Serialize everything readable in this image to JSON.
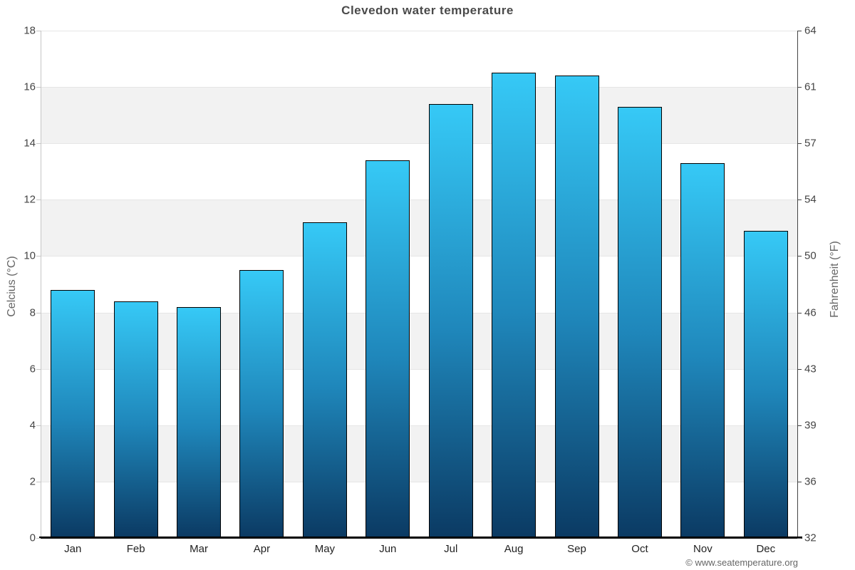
{
  "page": {
    "copyright": "© www.seatemperature.org"
  },
  "chart_data": {
    "type": "bar",
    "title": "Clevedon water temperature",
    "categories": [
      "Jan",
      "Feb",
      "Mar",
      "Apr",
      "May",
      "Jun",
      "Jul",
      "Aug",
      "Sep",
      "Oct",
      "Nov",
      "Dec"
    ],
    "values": [
      8.8,
      8.4,
      8.2,
      9.5,
      11.2,
      13.4,
      15.4,
      16.5,
      16.4,
      15.3,
      13.3,
      10.9
    ],
    "series_name": "Water temperature",
    "xlabel": "",
    "ylabel_left": "Celcius (°C)",
    "ylabel_right": "Fahrenheit (°F)",
    "ylim": [
      0,
      18
    ],
    "yticks_celsius": [
      18,
      16,
      14,
      12,
      10,
      8,
      6,
      4,
      2,
      0
    ],
    "yticks_fahrenheit": [
      64,
      61,
      57,
      54,
      50,
      46,
      43,
      39,
      36,
      32
    ],
    "legend": "none",
    "grid": "horizontal gridlines every 2°C with alternating shaded bands",
    "colors": {
      "bar_gradient_top": "#36c9f6",
      "bar_gradient_mid": "#1f87bb",
      "bar_gradient_bottom": "#0b3a63",
      "bar_border": "#000000",
      "band_shaded": "#f2f2f2",
      "band_plain": "#ffffff",
      "gridline": "#e6e6e6",
      "title_color": "#4a4a4a",
      "label_color": "#444444"
    }
  }
}
